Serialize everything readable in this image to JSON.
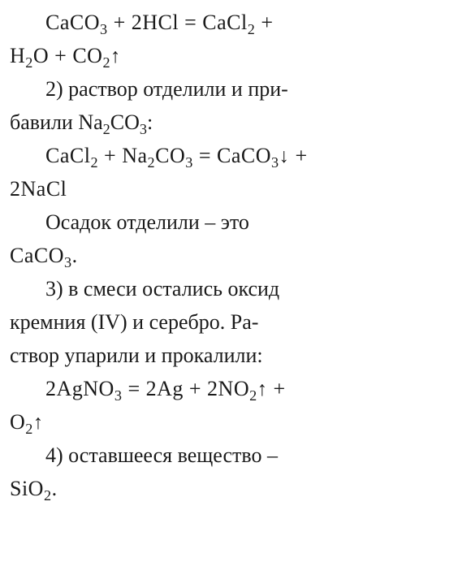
{
  "text_color": "#1a1a1a",
  "background_color": "#ffffff",
  "font_size": 26,
  "font_family": "Georgia, Times New Roman, serif",
  "lines": {
    "eq1_part1_pre": "CaCO",
    "eq1_part1_sub1": "3",
    "eq1_part1_mid": " + 2HCl = CaCl",
    "eq1_part1_sub2": "2",
    "eq1_part1_end": " +",
    "eq1_part2_h": "H",
    "eq1_part2_sub1": "2",
    "eq1_part2_o": "O + CO",
    "eq1_part2_sub2": "2",
    "step2_text_a": "2) раствор отделили и при-",
    "step2_text_b": "бавили Na",
    "step2_sub1": "2",
    "step2_text_c": "CO",
    "step2_sub2": "3",
    "step2_text_d": ":",
    "eq2_a": "CaCl",
    "eq2_sub1": "2",
    "eq2_b": " + Na",
    "eq2_sub2": "2",
    "eq2_c": "CO",
    "eq2_sub3": "3",
    "eq2_d": " = CaCO",
    "eq2_sub4": "3",
    "eq2_e": " +",
    "eq2_line2": "2NaCl",
    "sediment_a": "Осадок отделили – это",
    "sediment_b": "CaCO",
    "sediment_sub": "3",
    "sediment_c": ".",
    "step3_a": "3) в смеси остались оксид",
    "step3_b": "кремния (IV) и серебро. Ра-",
    "step3_c": "створ упарили и прокалили:",
    "eq3_a": "2AgNO",
    "eq3_sub1": "3",
    "eq3_b": " = 2Ag + 2NO",
    "eq3_sub2": "2",
    "eq3_c": " +",
    "eq3_d": "O",
    "eq3_sub3": "2",
    "step4_a": "4) оставшееся вещество –",
    "step4_b": "SiO",
    "step4_sub": "2",
    "step4_c": "."
  }
}
